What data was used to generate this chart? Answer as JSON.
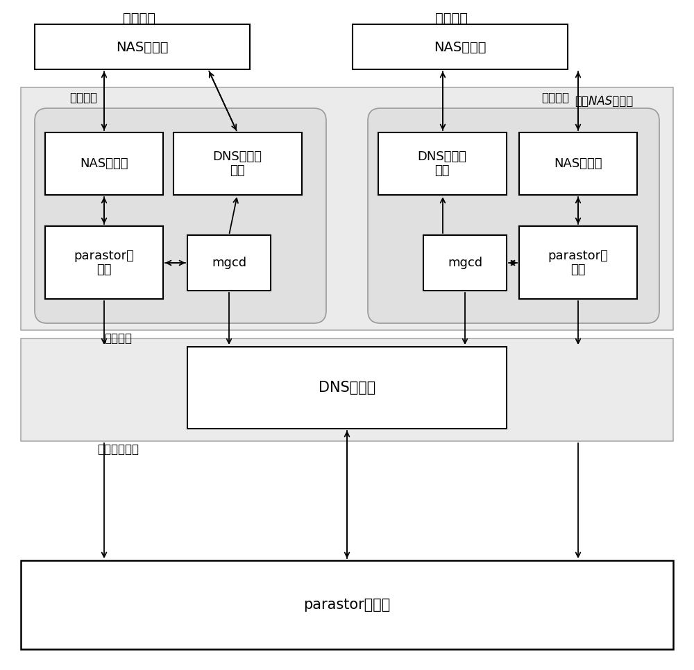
{
  "bg_color": "#ffffff",
  "labels": {
    "user_node_left": "用户节点",
    "user_node_right": "用户节点",
    "nas_client_left": "NAS客户端",
    "nas_client_right": "NAS客户端",
    "cluster_nas_mgr": "集群NAS管理器",
    "interface_node_left": "接口节点",
    "interface_node_right": "接口节点",
    "nas_server_left": "NAS服务端",
    "nas_server_right": "NAS服务端",
    "dns_forward_left": "DNS转发服\n务器",
    "dns_forward_right": "DNS转发服\n务器",
    "parastor_client_left": "parastor客\n户端",
    "parastor_client_right": "parastor客\n户端",
    "mgcd_left": "mgcd",
    "mgcd_right": "mgcd",
    "manage_node": "管理节点",
    "dns_server": "DNS服务器",
    "storage_cluster": "存储节点集群",
    "parastor_server": "parastor服务端"
  }
}
